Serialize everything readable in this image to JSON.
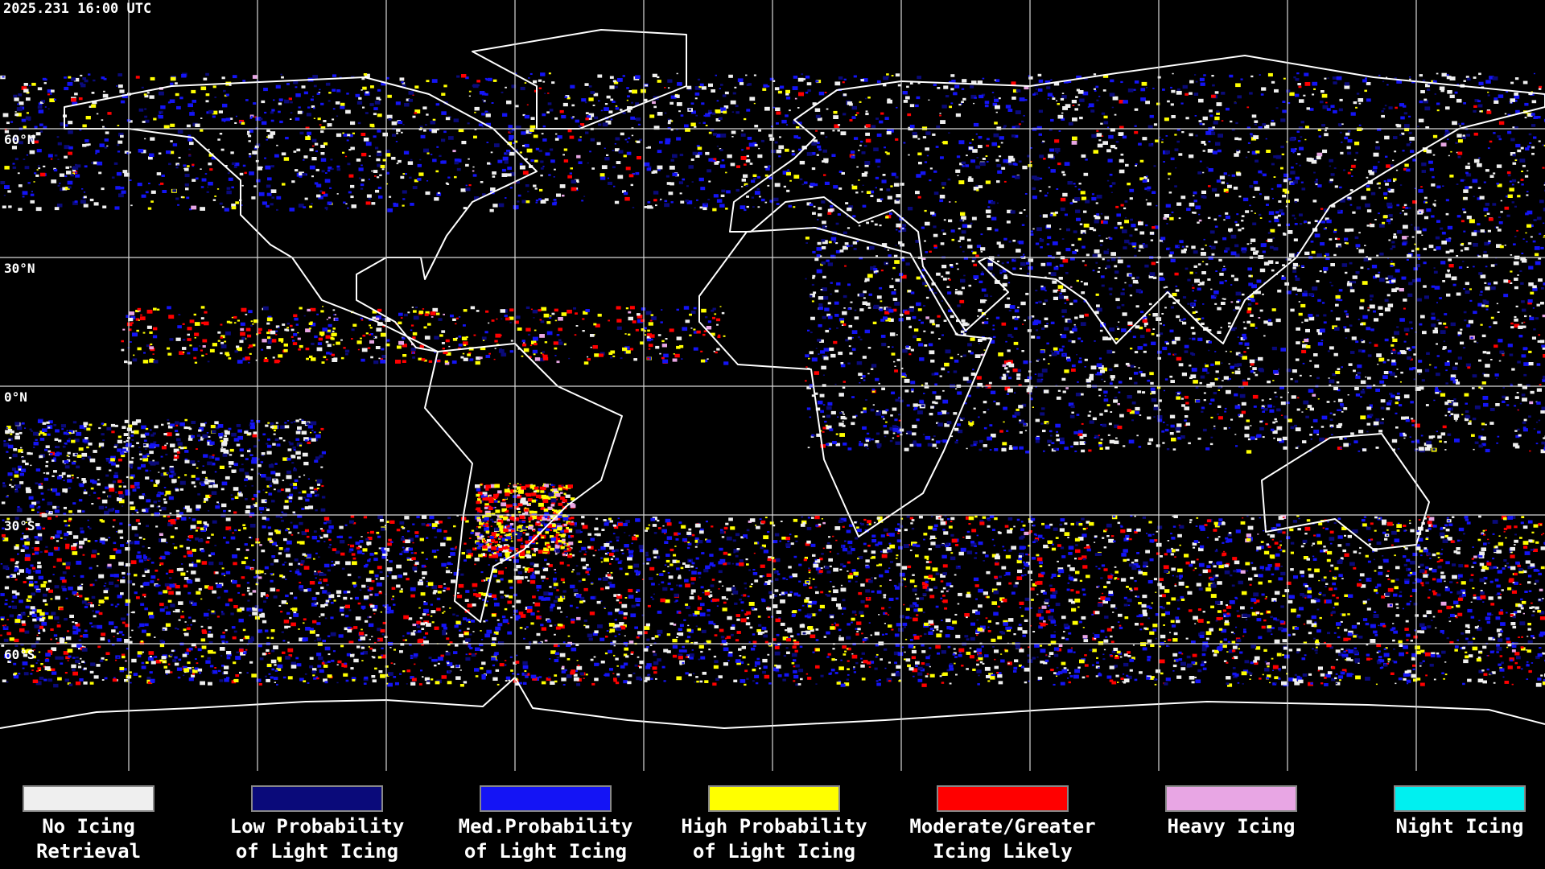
{
  "header": {
    "timestamp": "2025.231 16:00 UTC"
  },
  "map": {
    "latitude_labels": [
      "60°N",
      "30°N",
      "0°N",
      "30°S",
      "60°S"
    ]
  },
  "legend": {
    "items": [
      {
        "color": "#efefef",
        "lines": [
          "No Icing",
          "Retrieval"
        ]
      },
      {
        "color": "#0a0a7a",
        "lines": [
          "Low Probability",
          "of Light Icing"
        ]
      },
      {
        "color": "#1414f5",
        "lines": [
          "Med.Probability",
          "of Light Icing"
        ]
      },
      {
        "color": "#ffff00",
        "lines": [
          "High Probability",
          "of Light Icing"
        ]
      },
      {
        "color": "#ff0000",
        "lines": [
          "Moderate/Greater",
          "Icing Likely"
        ]
      },
      {
        "color": "#e8a6e4",
        "lines": [
          "Heavy Icing"
        ]
      },
      {
        "color": "#00f0f0",
        "lines": [
          "Night Icing"
        ]
      }
    ]
  }
}
